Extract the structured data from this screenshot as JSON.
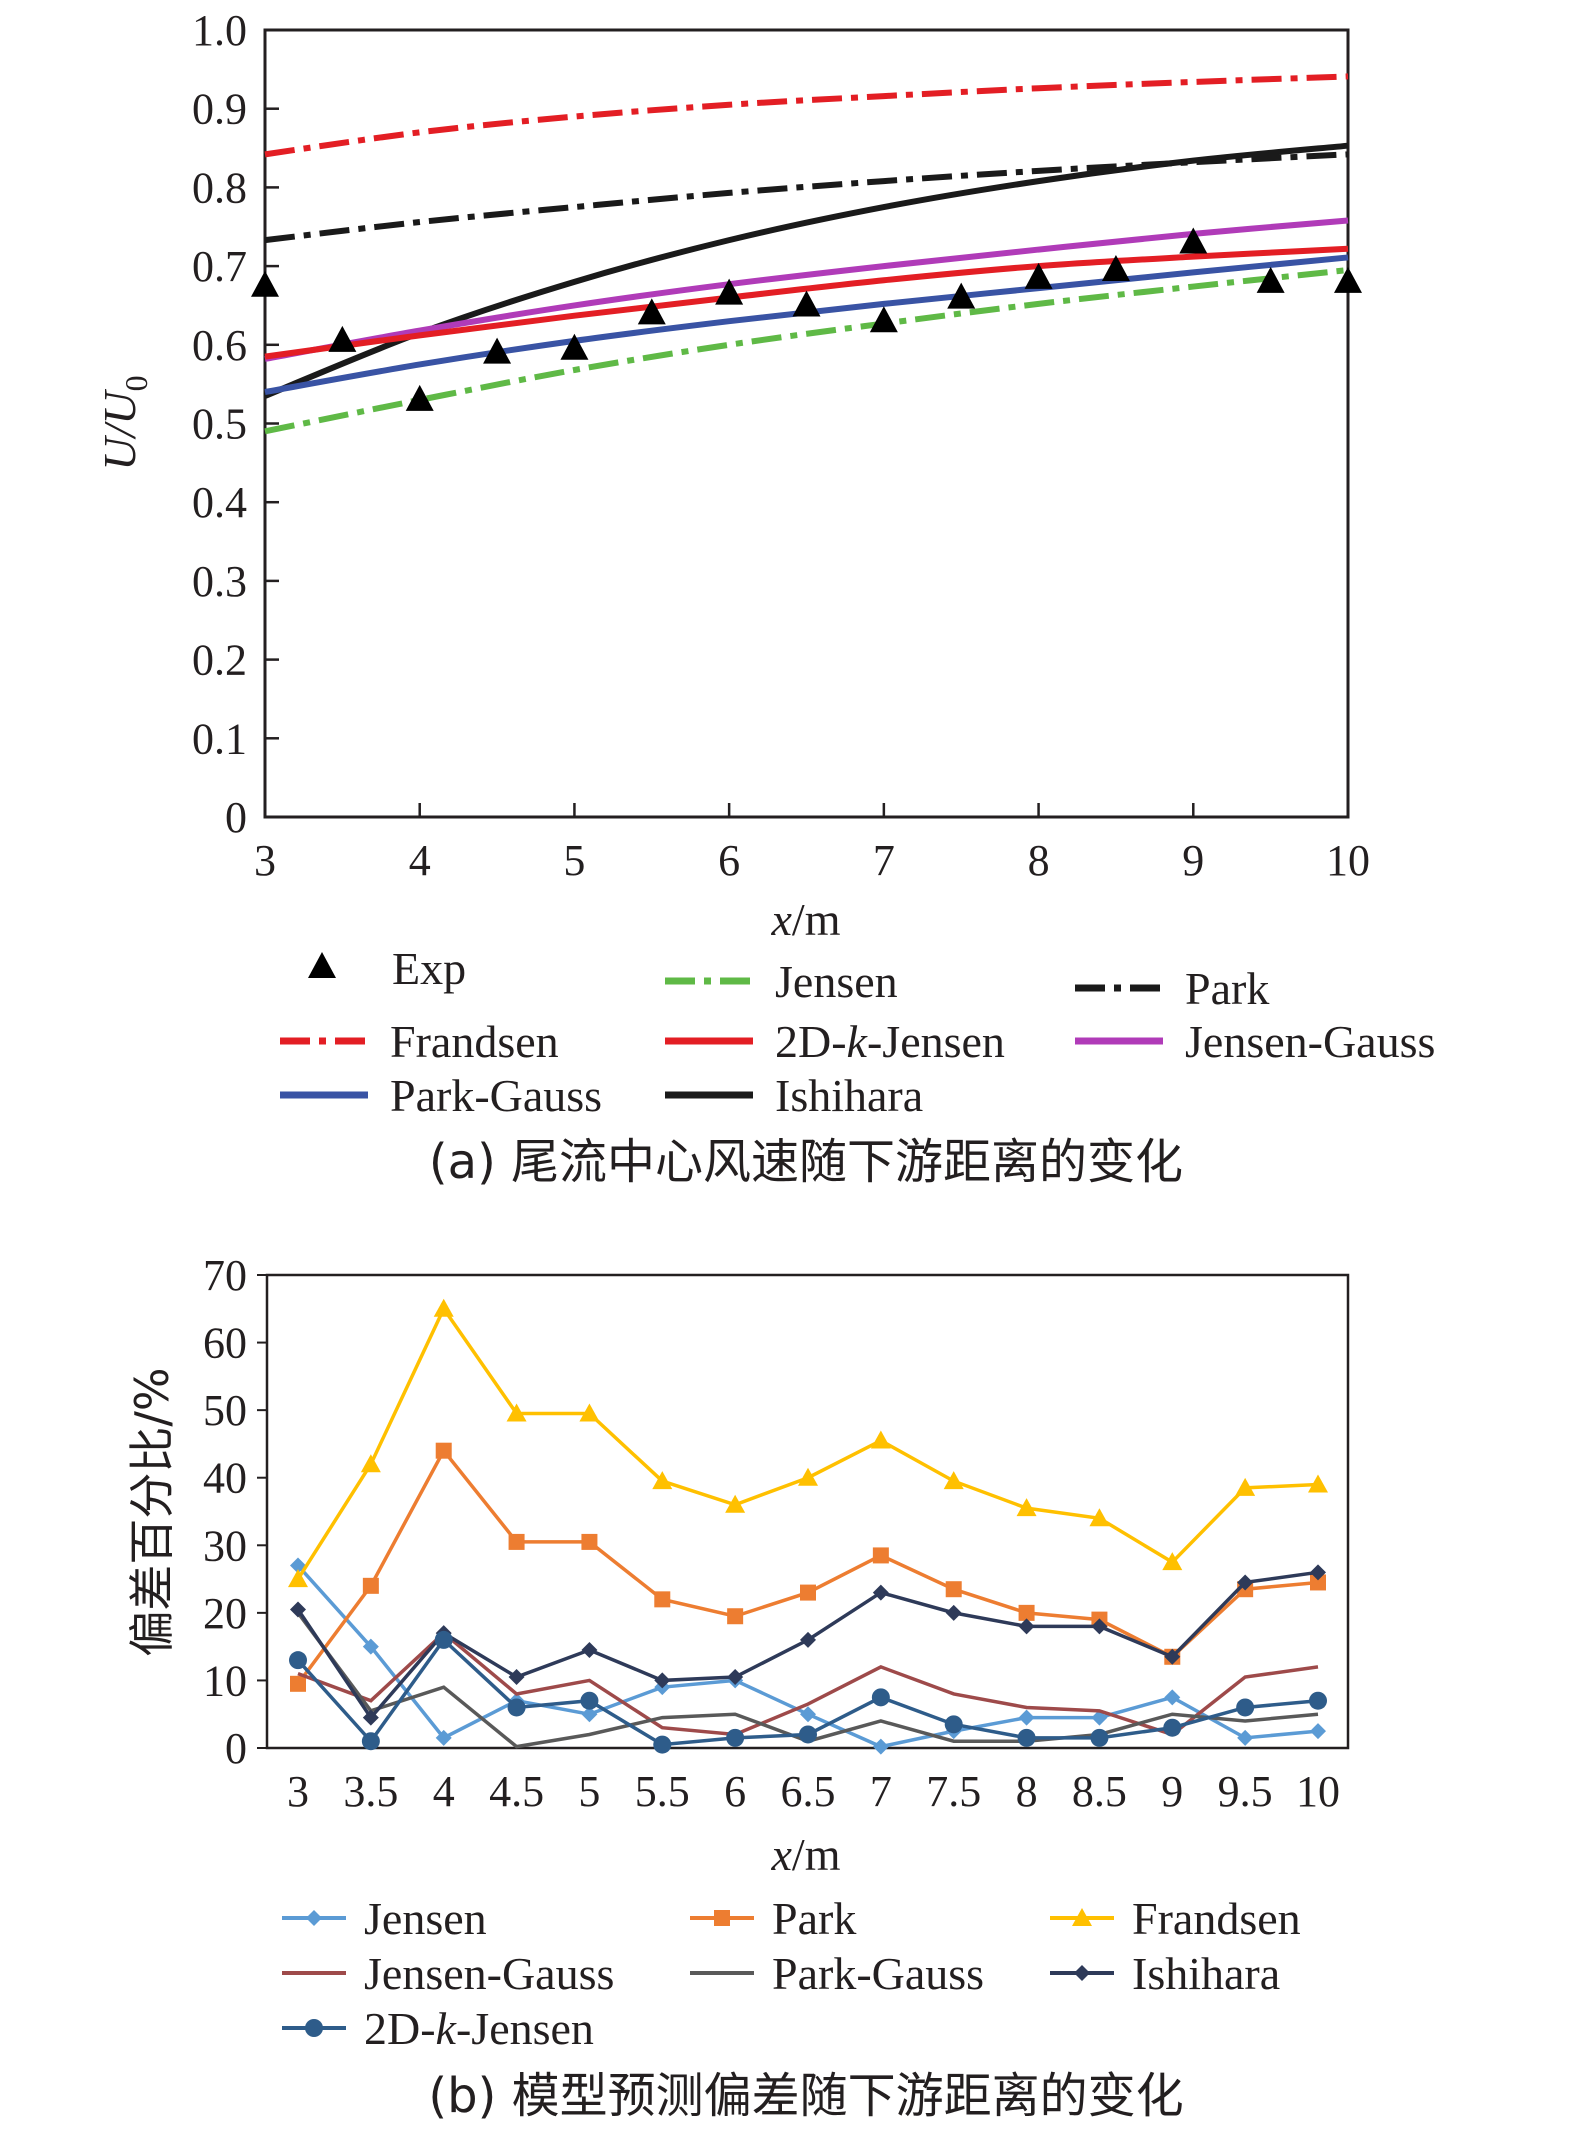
{
  "chart_data": [
    {
      "type": "line",
      "caption": "(a) 尾流中心风速随下游距离的变化",
      "xlabel": "x/m",
      "ylabel": "U/U0",
      "xlim": [
        3,
        10
      ],
      "ylim": [
        0,
        1.0
      ],
      "x_ticks": [
        "3",
        "4",
        "5",
        "6",
        "7",
        "8",
        "9",
        "10"
      ],
      "y_ticks": [
        "0",
        "0.1",
        "0.2",
        "0.3",
        "0.4",
        "0.5",
        "0.6",
        "0.7",
        "0.8",
        "0.9",
        "1.0"
      ],
      "grid": false,
      "legend_position": "bottom",
      "x": [
        3,
        4,
        5,
        6,
        7,
        8,
        9,
        10
      ],
      "series": [
        {
          "name": "Frandsen",
          "color": "#e31e24",
          "dash": "dashdot",
          "values": [
            0.842,
            0.87,
            0.89,
            0.905,
            0.916,
            0.926,
            0.934,
            0.941
          ]
        },
        {
          "name": "Park",
          "color": "#1a1a1a",
          "dash": "dashdot",
          "values": [
            0.733,
            0.756,
            0.775,
            0.793,
            0.808,
            0.821,
            0.832,
            0.842
          ]
        },
        {
          "name": "Ishihara",
          "color": "#1a1a1a",
          "dash": "solid",
          "values": [
            0.535,
            0.615,
            0.68,
            0.733,
            0.775,
            0.808,
            0.834,
            0.853
          ]
        },
        {
          "name": "Jensen-Gauss",
          "color": "#b03bb8",
          "dash": "solid",
          "values": [
            0.582,
            0.618,
            0.65,
            0.677,
            0.7,
            0.721,
            0.741,
            0.758
          ]
        },
        {
          "name": "2D-k-Jensen",
          "color": "#e31e24",
          "dash": "solid",
          "values": [
            0.585,
            0.612,
            0.637,
            0.66,
            0.682,
            0.7,
            0.712,
            0.722
          ]
        },
        {
          "name": "Park-Gauss",
          "color": "#3953a4",
          "dash": "solid",
          "values": [
            0.54,
            0.575,
            0.605,
            0.63,
            0.652,
            0.672,
            0.692,
            0.711
          ]
        },
        {
          "name": "Jensen",
          "color": "#5fb946",
          "dash": "dashdot",
          "values": [
            0.49,
            0.53,
            0.568,
            0.6,
            0.627,
            0.652,
            0.674,
            0.695
          ]
        }
      ],
      "experiment": {
        "name": "Exp",
        "x": [
          3,
          3.5,
          4,
          4.5,
          5,
          5.5,
          6,
          6.5,
          7,
          7.5,
          8,
          8.5,
          9,
          9.5,
          10
        ],
        "y": [
          0.675,
          0.605,
          0.53,
          0.59,
          0.595,
          0.64,
          0.665,
          0.65,
          0.63,
          0.66,
          0.685,
          0.695,
          0.73,
          0.68,
          0.68
        ]
      },
      "legend": [
        {
          "label": "Exp",
          "key": "exp"
        },
        {
          "label": "Jensen",
          "key": "Jensen"
        },
        {
          "label": "Park",
          "key": "Park"
        },
        {
          "label": "Frandsen",
          "key": "Frandsen"
        },
        {
          "label": "2D-k-Jensen",
          "key": "2D-k-Jensen"
        },
        {
          "label": "Jensen-Gauss",
          "key": "Jensen-Gauss"
        },
        {
          "label": "Park-Gauss",
          "key": "Park-Gauss"
        },
        {
          "label": "Ishihara",
          "key": "Ishihara"
        }
      ]
    },
    {
      "type": "line",
      "caption": "(b) 模型预测偏差随下游距离的变化",
      "xlabel": "x/m",
      "ylabel": "偏差百分比/%",
      "ylim": [
        0,
        70
      ],
      "categories": [
        "3",
        "3.5",
        "4",
        "4.5",
        "5",
        "5.5",
        "6",
        "6.5",
        "7",
        "7.5",
        "8",
        "8.5",
        "9",
        "9.5",
        "10"
      ],
      "y_ticks": [
        "0",
        "10",
        "20",
        "30",
        "40",
        "50",
        "60",
        "70"
      ],
      "grid": false,
      "legend_position": "bottom",
      "series": [
        {
          "name": "Jensen",
          "color": "#5b9bd5",
          "marker": "diamond",
          "values": [
            27,
            15,
            1.5,
            7,
            5,
            9,
            10,
            5,
            0.2,
            2.5,
            4.5,
            4.5,
            7.5,
            1.5,
            2.5
          ]
        },
        {
          "name": "Park",
          "color": "#ed7d31",
          "marker": "square",
          "values": [
            9.5,
            24,
            44,
            30.5,
            30.5,
            22,
            19.5,
            23,
            28.5,
            23.5,
            20,
            19,
            13.5,
            23.5,
            24.5
          ]
        },
        {
          "name": "Frandsen",
          "color": "#ffc000",
          "marker": "triangle",
          "values": [
            25,
            42,
            65,
            49.5,
            49.5,
            39.5,
            36,
            40,
            45.5,
            39.5,
            35.5,
            34,
            27.5,
            38.5,
            39
          ]
        },
        {
          "name": "Jensen-Gauss",
          "color": "#9e4a4a",
          "marker": "none",
          "values": [
            11,
            7,
            17,
            8,
            10,
            3,
            2,
            6.5,
            12,
            8,
            6,
            5.5,
            2,
            10.5,
            12
          ]
        },
        {
          "name": "Park-Gauss",
          "color": "#595959",
          "marker": "none",
          "values": [
            20,
            5.5,
            9,
            0.2,
            2,
            4.5,
            5,
            1,
            4,
            1,
            1,
            2,
            5,
            4,
            5
          ]
        },
        {
          "name": "Ishihara",
          "color": "#2e3a59",
          "marker": "diamond",
          "values": [
            20.5,
            4.5,
            17,
            10.5,
            14.5,
            10,
            10.5,
            16,
            23,
            20,
            18,
            18,
            13.5,
            24.5,
            26
          ]
        },
        {
          "name": "2D-k-Jensen",
          "color": "#2e5c8a",
          "marker": "circle",
          "values": [
            13,
            1,
            16,
            6,
            7,
            0.5,
            1.5,
            2,
            7.5,
            3.5,
            1.5,
            1.5,
            3,
            6,
            7
          ]
        }
      ]
    }
  ]
}
